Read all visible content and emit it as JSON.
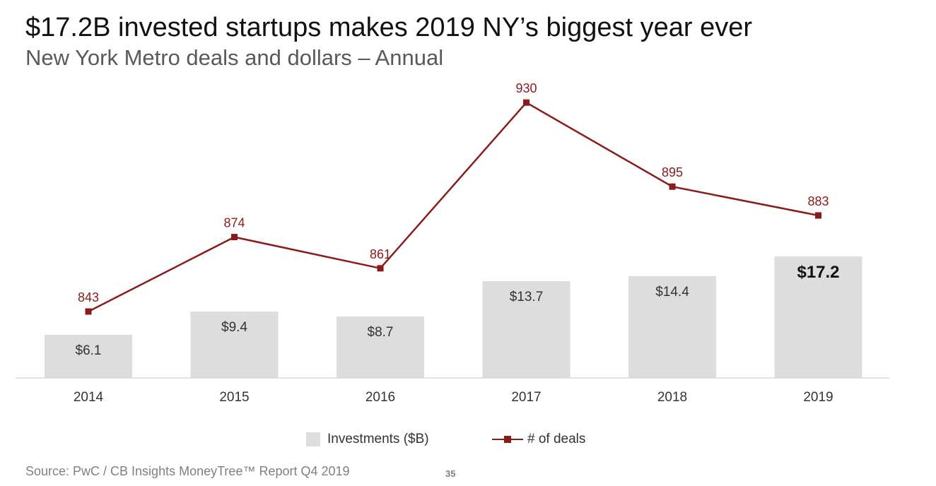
{
  "header": {
    "title": "$17.2B invested startups makes 2019 NY’s biggest year ever",
    "subtitle": "New York Metro deals and dollars – Annual"
  },
  "chart_data": {
    "type": "bar",
    "categories": [
      "2014",
      "2015",
      "2016",
      "2017",
      "2018",
      "2019"
    ],
    "series": [
      {
        "name": "Investments ($B)",
        "type": "bar",
        "values": [
          6.1,
          9.4,
          8.7,
          13.7,
          14.4,
          17.2
        ],
        "labels": [
          "$6.1",
          "$9.4",
          "$8.7",
          "$13.7",
          "$14.4",
          "$17.2"
        ],
        "color": "#dddddd"
      },
      {
        "name": "# of deals",
        "type": "line",
        "values": [
          843,
          874,
          861,
          930,
          895,
          883
        ],
        "labels": [
          "843",
          "874",
          "861",
          "930",
          "895",
          "883"
        ],
        "color": "#8b1a1a"
      }
    ],
    "highlight_index": 5,
    "axis_color": "#d9d9d9",
    "tick_label_color": "#333333",
    "bar_label_color": "#333333"
  },
  "legend": {
    "items": [
      {
        "label": "Investments ($B)",
        "kind": "bar",
        "color": "#dddddd"
      },
      {
        "label": "# of deals",
        "kind": "line",
        "color": "#8b1a1a"
      }
    ]
  },
  "footer": {
    "source": "Source: PwC / CB Insights MoneyTree™ Report Q4 2019",
    "page_number": "35"
  }
}
